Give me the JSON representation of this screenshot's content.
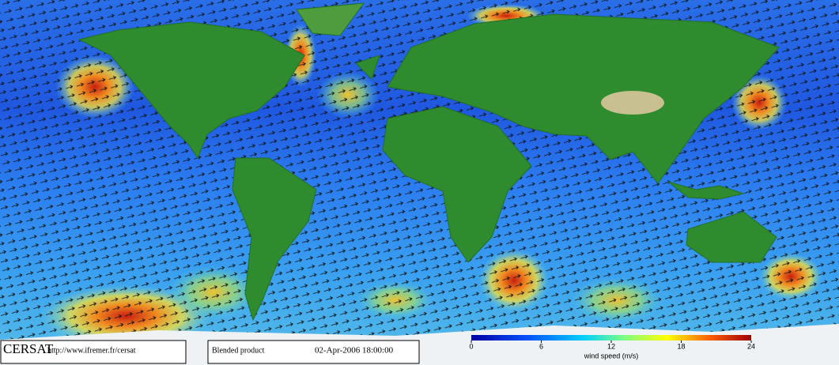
{
  "footer": {
    "logo": "CERSAT",
    "url": "http://www.ifremer.fr/cersat",
    "product": "Blended product",
    "timestamp": "02-Apr-2006 18:00:00"
  },
  "colorbar": {
    "label": "wind speed (m/s)",
    "lim": [
      0,
      24
    ],
    "ticks": [
      0,
      6,
      12,
      18,
      24
    ]
  }
}
